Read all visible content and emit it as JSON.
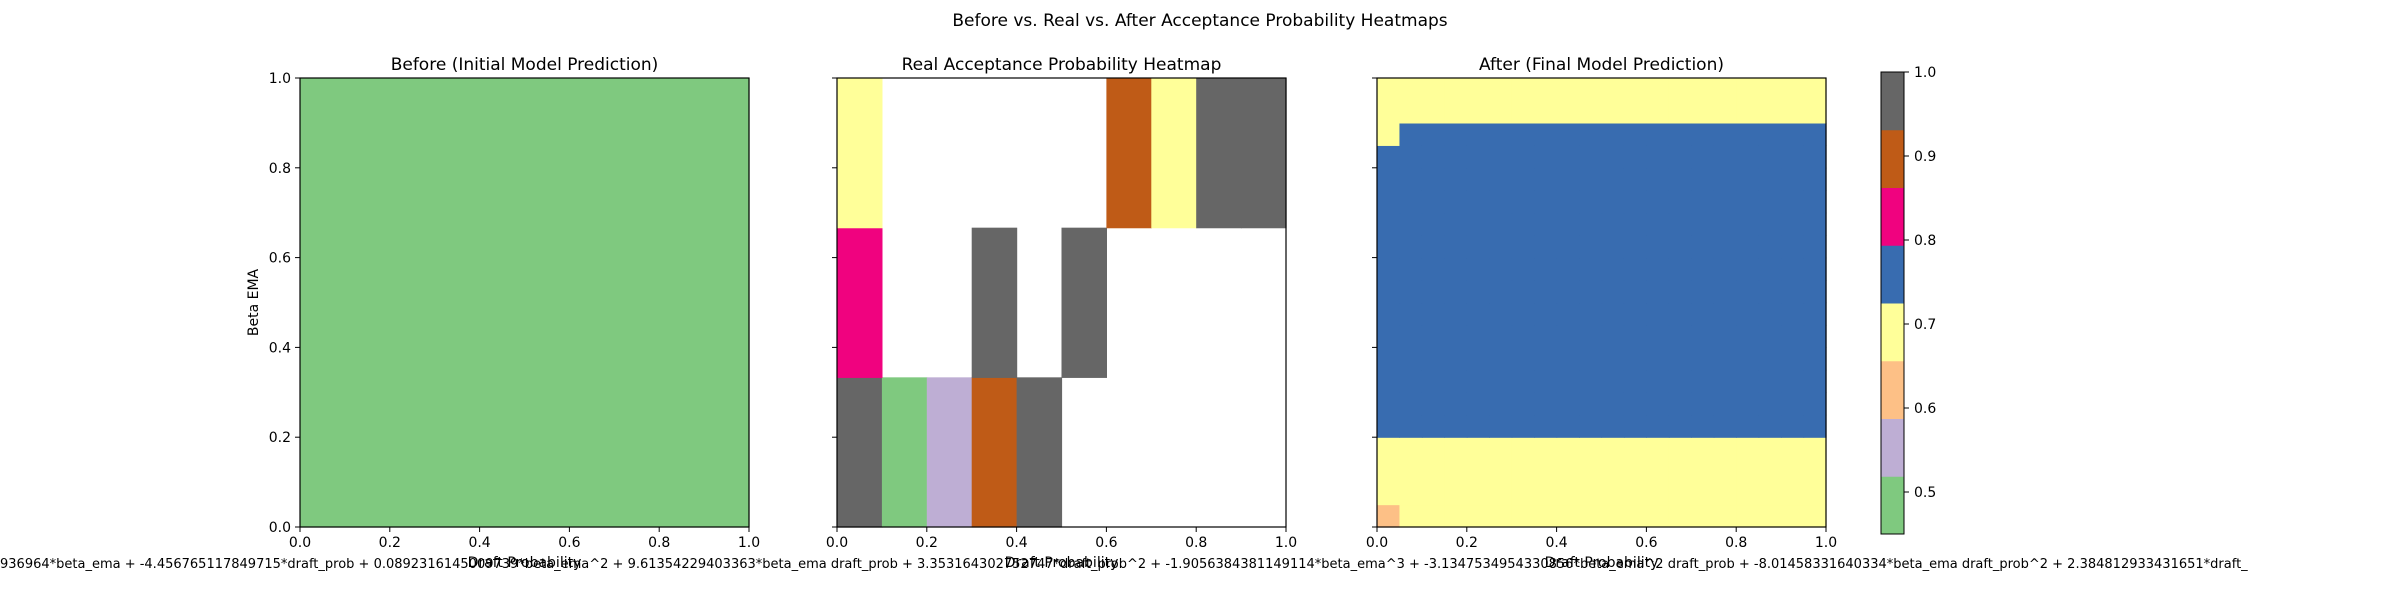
{
  "figure": {
    "suptitle": "Before vs. Real vs. After Acceptance Probability Heatmaps",
    "footer_formula": "936964*beta_ema + -4.456765117849715*draft_prob + 0.0892316145009739*beta_ema^2 + 9.61354229403363*beta_ema draft_prob + 3.353164302752747*draft_prob^2 + -1.9056384381149114*beta_ema^3 + -3.1347534954330856*beta_ema^2 draft_prob + -8.01458331640334*beta_ema draft_prob^2 + 2.384812933431651*draft_"
  },
  "colorbar": {
    "ticks": [
      "0.5",
      "0.6",
      "0.7",
      "0.8",
      "0.9",
      "1.0"
    ],
    "tick_values": [
      0.5,
      0.6,
      0.7,
      0.8,
      0.9,
      1.0
    ],
    "range": [
      0.45,
      1.0
    ],
    "colors": [
      "#7fc97f",
      "#beaed4",
      "#fdc086",
      "#ffff99",
      "#386cb0",
      "#f0027f",
      "#bf5b17",
      "#666666"
    ]
  },
  "chart_data": [
    {
      "type": "heatmap",
      "title": "Before (Initial Model Prediction)",
      "xlabel": "Draft Probability",
      "ylabel": "Beta EMA",
      "xlim": [
        0,
        1
      ],
      "ylim": [
        0,
        1
      ],
      "xticks": [
        "0.0",
        "0.2",
        "0.4",
        "0.6",
        "0.8",
        "1.0"
      ],
      "yticks": [
        "0.0",
        "0.2",
        "0.4",
        "0.6",
        "0.8",
        "1.0"
      ],
      "grid": [
        [
          0.5
        ]
      ]
    },
    {
      "type": "heatmap",
      "title": "Real Acceptance Probability Heatmap",
      "xlabel": "Draft Probability",
      "ylabel": "",
      "xlim": [
        0,
        1
      ],
      "ylim": [
        0,
        1
      ],
      "xticks": [
        "0.0",
        "0.2",
        "0.4",
        "0.6",
        "0.8",
        "1.0"
      ],
      "yticks": [],
      "grid": [
        [
          1.0,
          0.5,
          0.55,
          0.88,
          1.0,
          null,
          null,
          null,
          null,
          null
        ],
        [
          0.8,
          null,
          null,
          1.0,
          null,
          1.0,
          null,
          null,
          null,
          null
        ],
        [
          0.72,
          null,
          null,
          null,
          null,
          null,
          0.88,
          0.72,
          1.0,
          1.0
        ]
      ]
    },
    {
      "type": "heatmap",
      "title": "After (Final Model Prediction)",
      "xlabel": "Draft Probability",
      "ylabel": "",
      "xlim": [
        0,
        1
      ],
      "ylim": [
        0,
        1
      ],
      "xticks": [
        "0.0",
        "0.2",
        "0.4",
        "0.6",
        "0.8",
        "1.0"
      ],
      "yticks": [],
      "grid": [
        [
          0.6,
          0.68,
          0.68,
          0.68,
          0.68,
          0.68,
          0.68,
          0.68,
          0.68,
          0.68,
          0.68,
          0.68,
          0.68,
          0.68,
          0.68,
          0.68,
          0.68,
          0.68,
          0.68,
          0.68
        ],
        [
          0.68,
          0.68,
          0.68,
          0.68,
          0.68,
          0.68,
          0.68,
          0.68,
          0.68,
          0.68,
          0.68,
          0.68,
          0.68,
          0.68,
          0.68,
          0.68,
          0.68,
          0.68,
          0.68,
          0.68
        ],
        [
          0.68,
          0.68,
          0.68,
          0.68,
          0.68,
          0.68,
          0.68,
          0.68,
          0.68,
          0.68,
          0.68,
          0.68,
          0.68,
          0.68,
          0.68,
          0.68,
          0.68,
          0.68,
          0.68,
          0.68
        ],
        [
          0.68,
          0.68,
          0.68,
          0.68,
          0.68,
          0.68,
          0.68,
          0.68,
          0.68,
          0.68,
          0.68,
          0.68,
          0.68,
          0.68,
          0.68,
          0.68,
          0.68,
          0.68,
          0.68,
          0.68
        ],
        [
          0.76,
          0.76,
          0.76,
          0.76,
          0.76,
          0.76,
          0.76,
          0.76,
          0.76,
          0.76,
          0.76,
          0.76,
          0.76,
          0.76,
          0.76,
          0.76,
          0.76,
          0.76,
          0.76,
          0.76
        ],
        [
          0.76,
          0.76,
          0.76,
          0.76,
          0.76,
          0.76,
          0.76,
          0.76,
          0.76,
          0.76,
          0.76,
          0.76,
          0.76,
          0.76,
          0.76,
          0.76,
          0.76,
          0.76,
          0.76,
          0.76
        ],
        [
          0.76,
          0.76,
          0.76,
          0.76,
          0.76,
          0.76,
          0.76,
          0.76,
          0.76,
          0.76,
          0.76,
          0.76,
          0.76,
          0.76,
          0.76,
          0.76,
          0.76,
          0.76,
          0.76,
          0.76
        ],
        [
          0.76,
          0.76,
          0.76,
          0.76,
          0.76,
          0.76,
          0.76,
          0.76,
          0.76,
          0.76,
          0.76,
          0.76,
          0.76,
          0.76,
          0.76,
          0.76,
          0.76,
          0.76,
          0.76,
          0.76
        ],
        [
          0.76,
          0.76,
          0.76,
          0.76,
          0.76,
          0.76,
          0.76,
          0.76,
          0.76,
          0.76,
          0.76,
          0.76,
          0.76,
          0.76,
          0.76,
          0.76,
          0.76,
          0.76,
          0.76,
          0.76
        ],
        [
          0.76,
          0.76,
          0.76,
          0.76,
          0.76,
          0.76,
          0.76,
          0.76,
          0.76,
          0.76,
          0.76,
          0.76,
          0.76,
          0.76,
          0.76,
          0.76,
          0.76,
          0.76,
          0.76,
          0.76
        ],
        [
          0.76,
          0.76,
          0.76,
          0.76,
          0.76,
          0.76,
          0.76,
          0.76,
          0.76,
          0.76,
          0.76,
          0.76,
          0.76,
          0.76,
          0.76,
          0.76,
          0.76,
          0.76,
          0.76,
          0.76
        ],
        [
          0.76,
          0.76,
          0.76,
          0.76,
          0.76,
          0.76,
          0.76,
          0.76,
          0.76,
          0.76,
          0.76,
          0.76,
          0.76,
          0.76,
          0.76,
          0.76,
          0.76,
          0.76,
          0.76,
          0.76
        ],
        [
          0.76,
          0.76,
          0.76,
          0.76,
          0.76,
          0.76,
          0.76,
          0.76,
          0.76,
          0.76,
          0.76,
          0.76,
          0.76,
          0.76,
          0.76,
          0.76,
          0.76,
          0.76,
          0.76,
          0.76
        ],
        [
          0.76,
          0.76,
          0.76,
          0.76,
          0.76,
          0.76,
          0.76,
          0.76,
          0.76,
          0.76,
          0.76,
          0.76,
          0.76,
          0.76,
          0.76,
          0.76,
          0.76,
          0.76,
          0.76,
          0.76
        ],
        [
          0.76,
          0.76,
          0.76,
          0.76,
          0.76,
          0.76,
          0.76,
          0.76,
          0.76,
          0.76,
          0.76,
          0.76,
          0.76,
          0.76,
          0.76,
          0.76,
          0.76,
          0.76,
          0.76,
          0.76
        ],
        [
          0.76,
          0.76,
          0.76,
          0.76,
          0.76,
          0.76,
          0.76,
          0.76,
          0.76,
          0.76,
          0.76,
          0.76,
          0.76,
          0.76,
          0.76,
          0.76,
          0.76,
          0.76,
          0.76,
          0.76
        ],
        [
          0.76,
          0.76,
          0.76,
          0.76,
          0.76,
          0.76,
          0.76,
          0.76,
          0.76,
          0.76,
          0.76,
          0.76,
          0.76,
          0.76,
          0.76,
          0.76,
          0.76,
          0.76,
          0.76,
          0.76
        ],
        [
          0.68,
          0.76,
          0.76,
          0.76,
          0.76,
          0.76,
          0.76,
          0.76,
          0.76,
          0.76,
          0.76,
          0.76,
          0.76,
          0.76,
          0.76,
          0.76,
          0.76,
          0.76,
          0.76,
          0.76
        ],
        [
          0.68,
          0.68,
          0.68,
          0.68,
          0.68,
          0.68,
          0.68,
          0.68,
          0.68,
          0.68,
          0.68,
          0.68,
          0.68,
          0.68,
          0.68,
          0.68,
          0.68,
          0.68,
          0.68,
          0.68
        ],
        [
          0.68,
          0.68,
          0.68,
          0.68,
          0.68,
          0.68,
          0.68,
          0.68,
          0.68,
          0.68,
          0.68,
          0.68,
          0.68,
          0.68,
          0.68,
          0.68,
          0.68,
          0.68,
          0.68,
          0.68
        ]
      ]
    }
  ]
}
